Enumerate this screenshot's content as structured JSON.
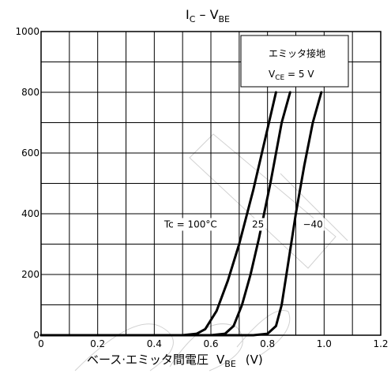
{
  "chart_data": {
    "type": "line",
    "title": {
      "main": "I",
      "main_sub": "C",
      "sep": " – ",
      "var": "V",
      "var_sub": "BE"
    },
    "xlabel": {
      "text": "ベース·エミッタ間電圧",
      "var": "V",
      "var_sub": "BE",
      "unit": "(V)"
    },
    "ylabel": "",
    "xlim": [
      0,
      1.2
    ],
    "ylim": [
      0,
      1000
    ],
    "xticks": [
      0,
      0.2,
      0.4,
      0.6,
      0.8,
      1.0,
      1.2
    ],
    "xtick_labels": [
      "0",
      "0.2",
      "0.4",
      "0.6",
      "0.8",
      "1.0",
      "1.2"
    ],
    "yticks": [
      0,
      200,
      400,
      600,
      800,
      1000
    ],
    "ytick_labels": [
      "0",
      "200",
      "400",
      "600",
      "800",
      "1000"
    ],
    "grid": true,
    "legend_box": {
      "line1": "エミッタ接地",
      "line2_var": "V",
      "line2_sub": "CE",
      "line2_rest": " = 5 V"
    },
    "series": [
      {
        "label": "Tc = 100°C",
        "x": [
          0.0,
          0.5,
          0.55,
          0.58,
          0.62,
          0.66,
          0.7,
          0.75,
          0.8,
          0.83
        ],
        "y": [
          0,
          0,
          5,
          20,
          80,
          180,
          300,
          480,
          680,
          800
        ]
      },
      {
        "label": "25",
        "x": [
          0.0,
          0.6,
          0.65,
          0.68,
          0.71,
          0.74,
          0.77,
          0.81,
          0.85,
          0.88
        ],
        "y": [
          0,
          0,
          5,
          30,
          100,
          200,
          320,
          500,
          700,
          800
        ]
      },
      {
        "label": "−40",
        "x": [
          0.0,
          0.75,
          0.8,
          0.83,
          0.85,
          0.87,
          0.9,
          0.93,
          0.96,
          0.99
        ],
        "y": [
          0,
          0,
          5,
          30,
          100,
          220,
          400,
          560,
          700,
          800
        ]
      }
    ]
  }
}
